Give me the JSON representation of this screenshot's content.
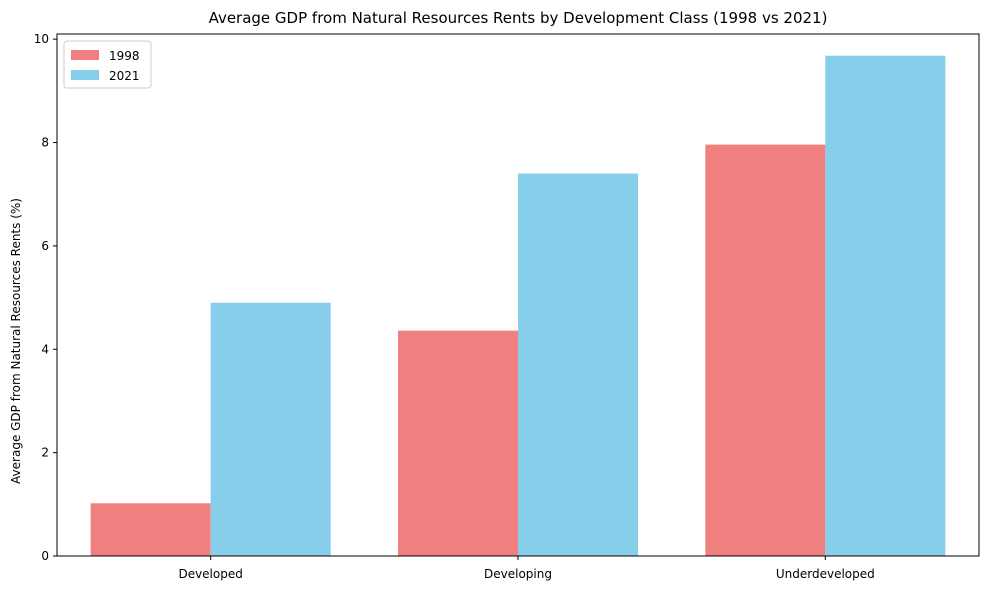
{
  "chart_data": {
    "type": "bar",
    "title": "Average GDP from Natural Resources Rents by Development Class (1998 vs 2021)",
    "xlabel": "",
    "ylabel": "Average GDP from Natural Resources Rents (%)",
    "categories": [
      "Developed",
      "Developing",
      "Underdeveloped"
    ],
    "series": [
      {
        "name": "1998",
        "color": "#f08080",
        "values": [
          1.02,
          4.36,
          7.96
        ]
      },
      {
        "name": "2021",
        "color": "#87ceeb",
        "values": [
          4.9,
          7.4,
          9.68
        ]
      }
    ],
    "ylim": [
      0,
      10.1
    ],
    "yticks": [
      0,
      2,
      4,
      6,
      8,
      10
    ],
    "grid": false,
    "legend_position": "top-left"
  }
}
